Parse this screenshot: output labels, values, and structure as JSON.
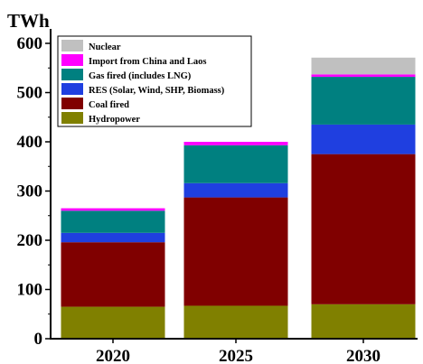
{
  "chart_data": {
    "type": "bar",
    "stacked": true,
    "unit_label": "TWh",
    "title": "",
    "xlabel": "",
    "ylabel": "",
    "categories": [
      "2020",
      "2025",
      "2030"
    ],
    "ylim": [
      0,
      600
    ],
    "yticks": [
      0,
      100,
      200,
      300,
      400,
      500,
      600
    ],
    "legend_position": "top-left",
    "series": [
      {
        "name": "Hydropower",
        "color": "#808000",
        "values": [
          65,
          67,
          70
        ]
      },
      {
        "name": "Coal fired",
        "color": "#800000",
        "values": [
          131,
          220,
          305
        ]
      },
      {
        "name": "RES (Solar, Wind, SHP, Biomass)",
        "color": "#1f3fe0",
        "values": [
          19,
          29,
          60
        ]
      },
      {
        "name": "Gas fired (includes LNG)",
        "color": "#008080",
        "values": [
          45,
          77,
          97
        ]
      },
      {
        "name": "Import from China and Laos",
        "color": "#ff00ff",
        "values": [
          5,
          7,
          5
        ]
      },
      {
        "name": "Nuclear",
        "color": "#c0c0c0",
        "values": [
          0,
          0,
          34
        ]
      }
    ]
  }
}
